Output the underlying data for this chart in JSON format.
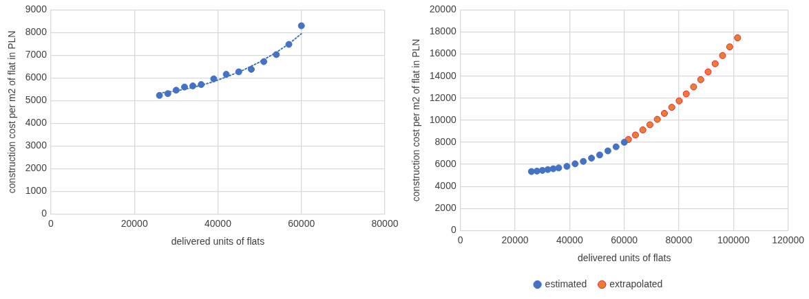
{
  "chart_data": [
    {
      "type": "scatter",
      "xlabel": "delivered units of flats",
      "ylabel": "construction cost per m2 of flat in PLN",
      "xlim": [
        0,
        80000
      ],
      "xticks": [
        0,
        20000,
        40000,
        60000,
        80000
      ],
      "ylim": [
        0,
        9000
      ],
      "yticks": [
        0,
        1000,
        2000,
        3000,
        4000,
        5000,
        6000,
        7000,
        8000,
        9000
      ],
      "grid": true,
      "legend": false,
      "marker": "circle",
      "series": [
        {
          "color": "#4472c4",
          "x": [
            26000,
            28000,
            30000,
            32000,
            34000,
            36000,
            39000,
            42000,
            45000,
            48000,
            51000,
            54000,
            57000,
            60000
          ],
          "values": [
            5230,
            5310,
            5460,
            5600,
            5650,
            5710,
            5960,
            6160,
            6270,
            6380,
            6720,
            7030,
            7480,
            8300
          ]
        },
        {
          "type": "line",
          "color": "#4472c4",
          "line_style": "dotted",
          "marker": "none",
          "x": [
            26000,
            30000,
            34000,
            38000,
            42000,
            46000,
            50000,
            54000,
            57000,
            60000
          ],
          "values": [
            5330,
            5430,
            5580,
            5780,
            6040,
            6340,
            6700,
            7130,
            7500,
            7950
          ]
        }
      ]
    },
    {
      "type": "scatter",
      "xlabel": "delivered units of flats",
      "ylabel": "construction cost per m2 of flat in PLN",
      "xlim": [
        0,
        120000
      ],
      "xticks": [
        0,
        20000,
        40000,
        60000,
        80000,
        100000,
        120000
      ],
      "ylim": [
        0,
        20000
      ],
      "yticks": [
        0,
        2000,
        4000,
        6000,
        8000,
        10000,
        12000,
        14000,
        16000,
        18000,
        20000
      ],
      "grid": true,
      "legend": "bottom",
      "marker": "circle",
      "series": [
        {
          "name": "estimated",
          "color": "#4472c4",
          "x": [
            26000,
            28000,
            30000,
            32000,
            34000,
            36000,
            39000,
            42000,
            45000,
            48000,
            51000,
            54000,
            57000,
            60000
          ],
          "values": [
            5350,
            5390,
            5450,
            5530,
            5600,
            5680,
            5820,
            6050,
            6270,
            6560,
            6850,
            7220,
            7590,
            8000
          ]
        },
        {
          "name": "extrapolated",
          "color": "#ed7d31",
          "x": [
            61500,
            64100,
            66800,
            69400,
            72100,
            74700,
            77400,
            80100,
            82700,
            85400,
            88000,
            90700,
            93300,
            96000,
            98600,
            101500
          ],
          "values": [
            8250,
            8660,
            9120,
            9590,
            10080,
            10620,
            11170,
            11750,
            12390,
            13020,
            13680,
            14380,
            15120,
            15860,
            16650,
            17470
          ]
        }
      ]
    }
  ]
}
